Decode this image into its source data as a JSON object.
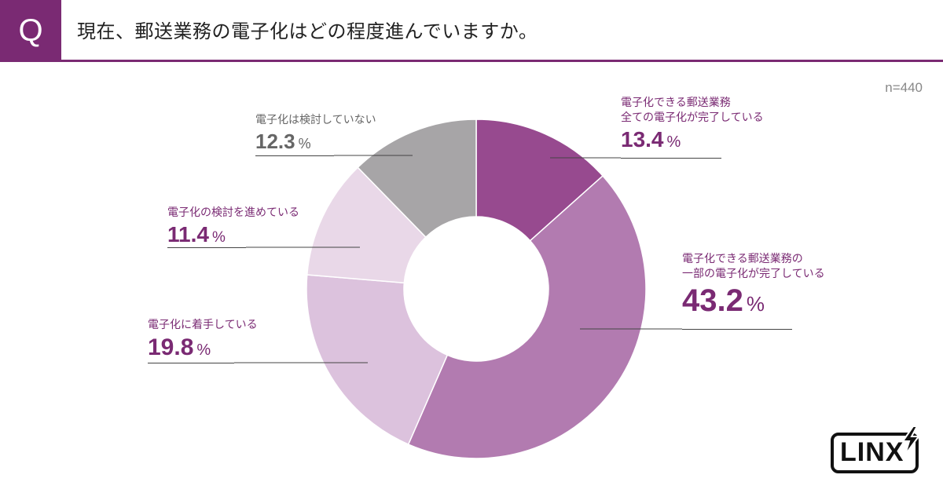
{
  "header": {
    "q_label": "Q",
    "title": "現在、郵送業務の電子化はどの程度進んでいますか。"
  },
  "sample_size": "n=440",
  "colors": {
    "accent": "#7a2a73",
    "slice_1": "#974a8f",
    "slice_2": "#b27bb0",
    "slice_3": "#dcc2dd",
    "slice_4": "#e9d8e8",
    "slice_5": "#a7a5a7"
  },
  "chart_data": {
    "type": "pie",
    "donut": true,
    "title": "現在、郵送業務の電子化はどの程度進んでいますか。",
    "unit": "%",
    "slices": [
      {
        "label_lines": [
          "電子化できる郵送業務",
          "全ての電子化が完了している"
        ],
        "value": 13.4,
        "value_text": "13.4",
        "color": "#974a8f"
      },
      {
        "label_lines": [
          "電子化できる郵送業務の",
          "一部の電子化が完了している"
        ],
        "value": 43.2,
        "value_text": "43.2",
        "color": "#b27bb0"
      },
      {
        "label_lines": [
          "電子化に着手している"
        ],
        "value": 19.8,
        "value_text": "19.8",
        "color": "#dcc2dd"
      },
      {
        "label_lines": [
          "電子化の検討を進めている"
        ],
        "value": 11.4,
        "value_text": "11.4",
        "color": "#e9d8e8"
      },
      {
        "label_lines": [
          "電子化は検討していない"
        ],
        "value": 12.3,
        "value_text": "12.3",
        "color": "#a7a5a7"
      }
    ]
  },
  "logo": {
    "text": "LINX"
  }
}
